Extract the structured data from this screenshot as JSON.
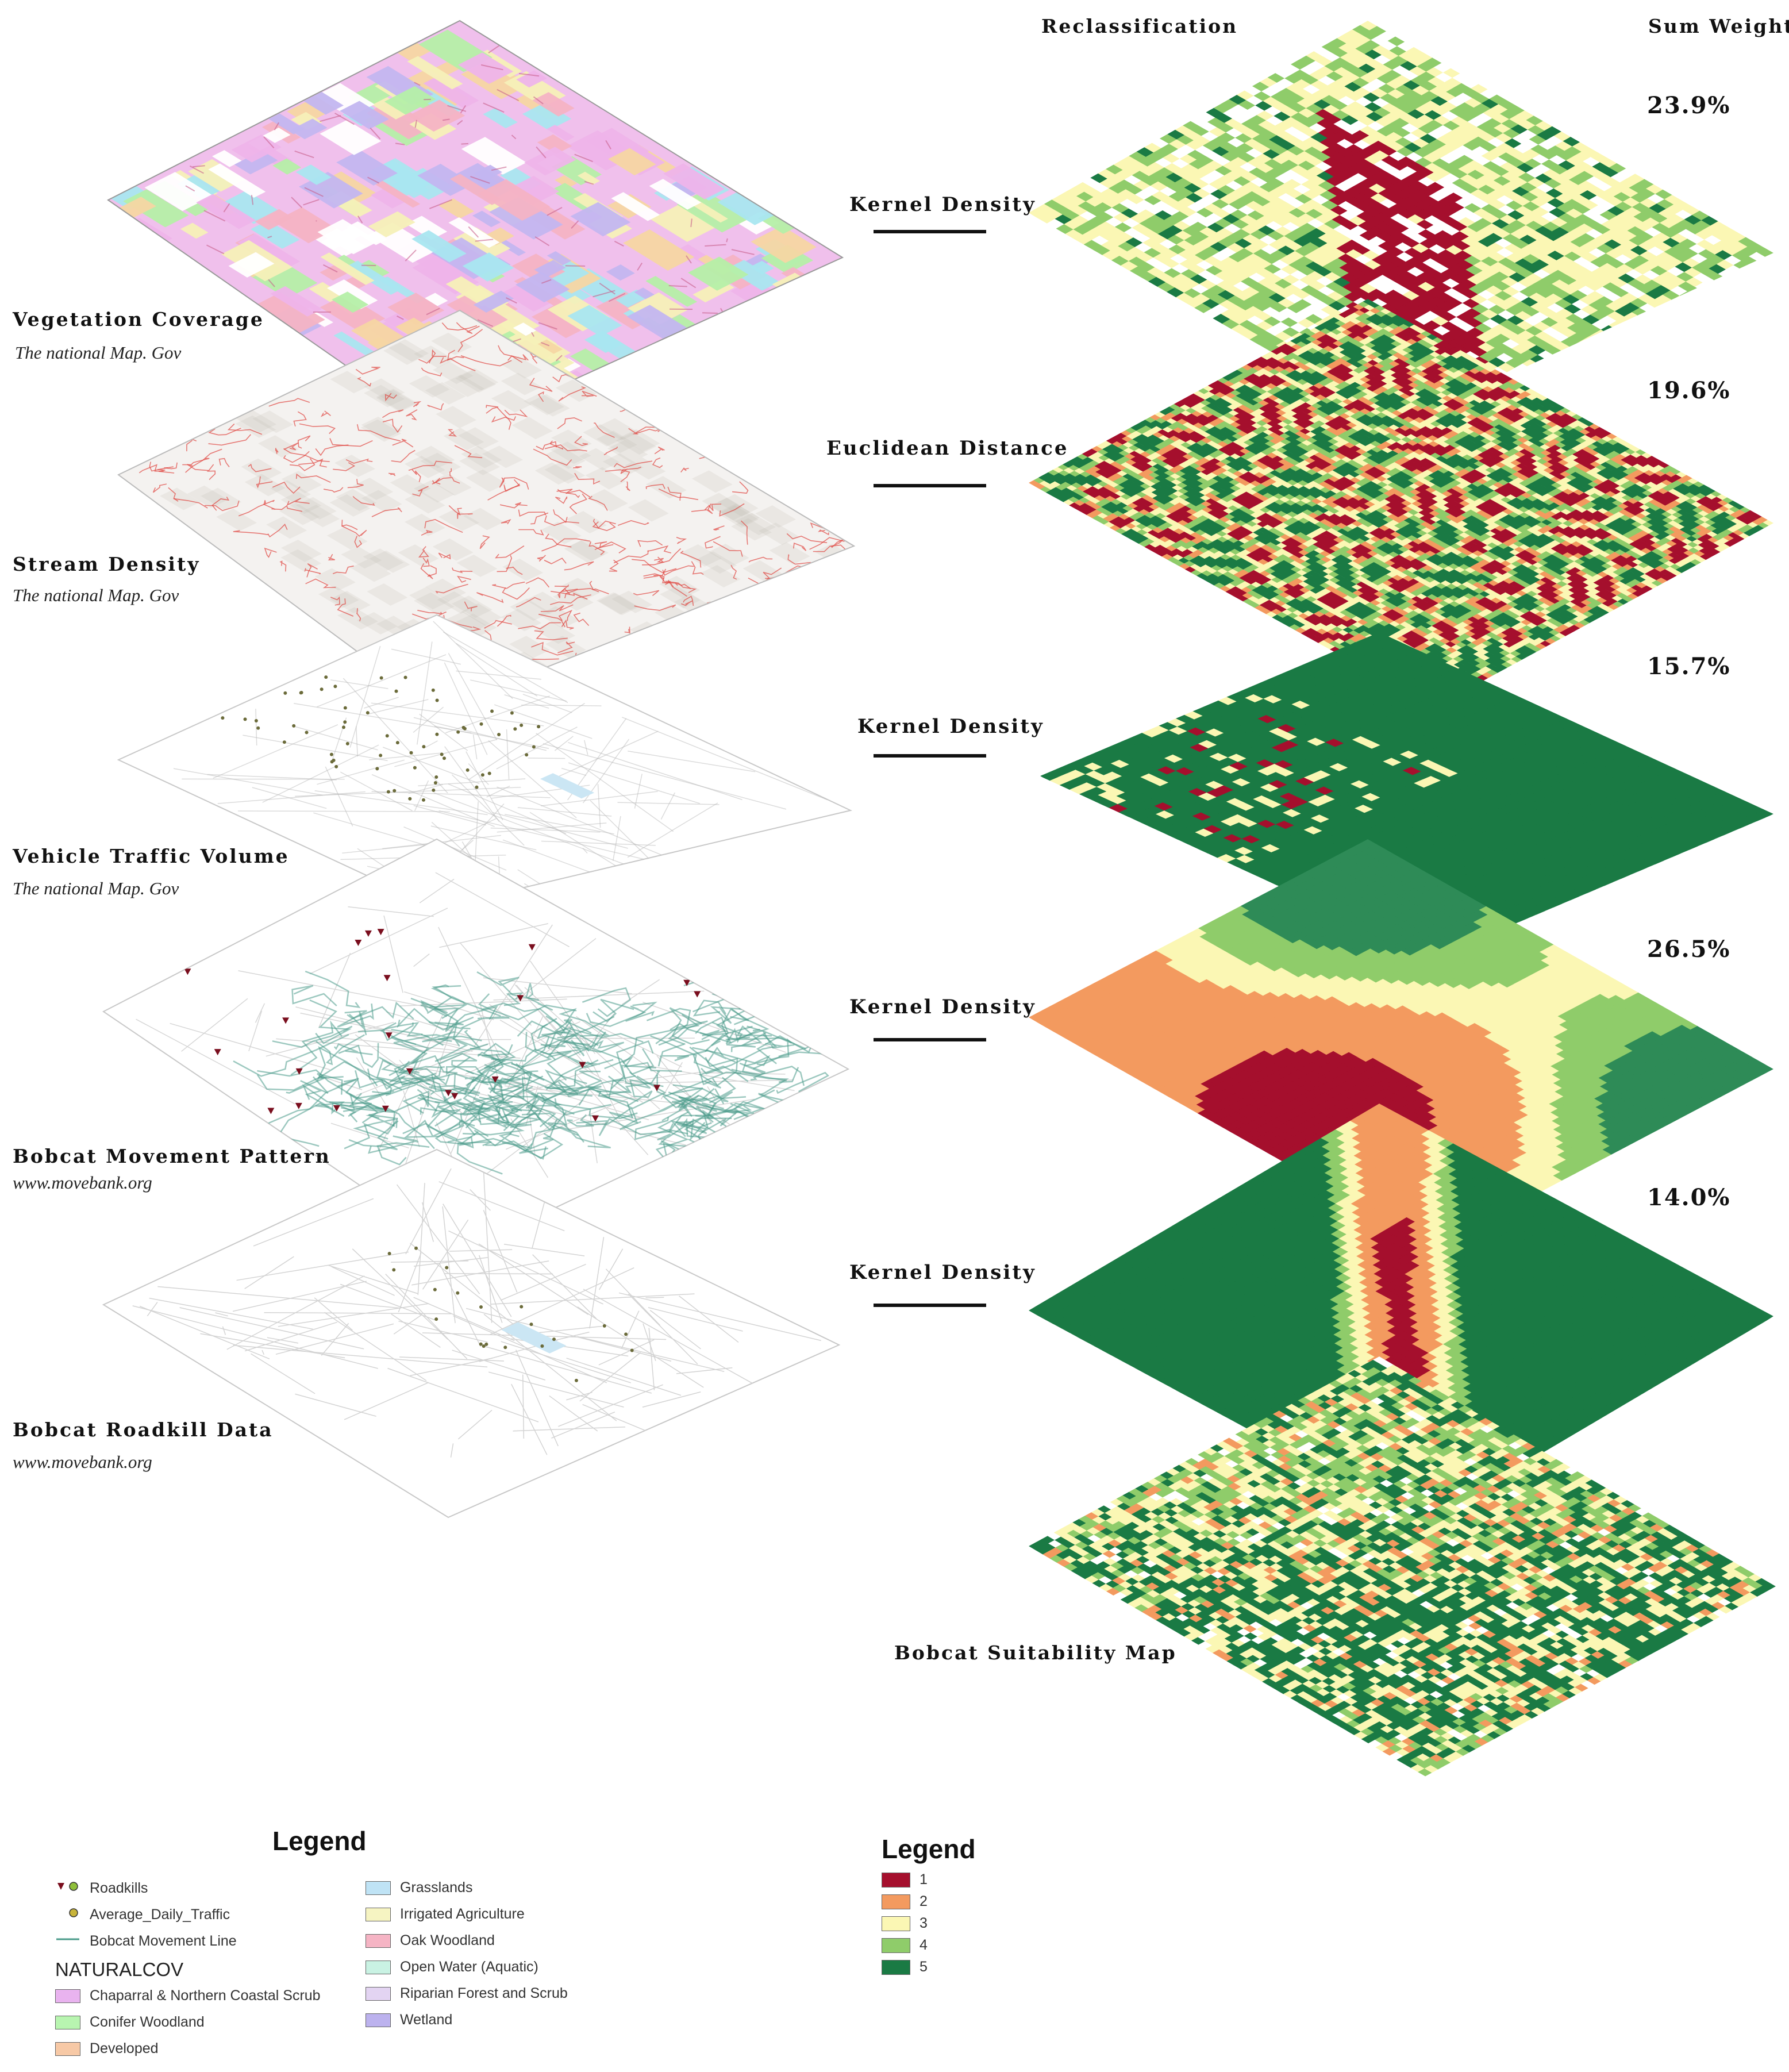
{
  "header": {
    "reclassification": "Reclassification",
    "sum_weight": "Sum Weight"
  },
  "layers": [
    {
      "title": "Vegetation Coverage",
      "source": "The national Map. Gov"
    },
    {
      "title": "Stream Density",
      "source": "The national Map. Gov"
    },
    {
      "title": "Vehicle Traffic Volume",
      "source": "The national Map. Gov"
    },
    {
      "title": "Bobcat Movement Pattern",
      "source": "www.movebank.org"
    },
    {
      "title": "Bobcat Roadkill Data",
      "source": "www.movebank.org"
    }
  ],
  "tools": [
    "Kernel Density",
    "Euclidean Distance",
    "Kernel Density",
    "Kernel Density",
    "Kernel Density"
  ],
  "weights": [
    "23.9%",
    "19.6%",
    "15.7%",
    "26.5%",
    "14.0%"
  ],
  "result_title": "Bobcat Suitability Map",
  "legend_left": {
    "title": "Legend",
    "points": [
      "Roadkills",
      "Average_Daily_Traffic",
      "Bobcat Movement Line"
    ],
    "group_title": "NATURALCOV",
    "classes_col1": [
      {
        "label": "Chaparral & Northern Coastal Scrub",
        "color": "#e9b3ef"
      },
      {
        "label": "Conifer Woodland",
        "color": "#b8f5b0"
      },
      {
        "label": "Developed",
        "color": "#f7c9a6"
      }
    ],
    "classes_col2": [
      {
        "label": "Grasslands",
        "color": "#bfe3f5"
      },
      {
        "label": "Irrigated Agriculture",
        "color": "#f6f4c2"
      },
      {
        "label": "Oak Woodland",
        "color": "#f5b4c4"
      },
      {
        "label": "Open Water (Aquatic)",
        "color": "#c9f2e3"
      },
      {
        "label": "Riparian Forest and Scrub",
        "color": "#e3d4f2"
      },
      {
        "label": "Wetland",
        "color": "#bcb2ee"
      }
    ]
  },
  "legend_right": {
    "title": "Legend",
    "classes": [
      {
        "label": "1",
        "color": "#a50f2d"
      },
      {
        "label": "2",
        "color": "#f39a5f"
      },
      {
        "label": "3",
        "color": "#fbf7b4"
      },
      {
        "label": "4",
        "color": "#8fcc6a"
      },
      {
        "label": "5",
        "color": "#1a7a44"
      }
    ]
  },
  "colors": {
    "road_grey": "#b8b8b8",
    "stream_red": "#e0453f",
    "movement_teal": "#4a9b8a",
    "water_blue": "#cbe6f4",
    "roadkill_maroon": "#7a0e1e"
  }
}
